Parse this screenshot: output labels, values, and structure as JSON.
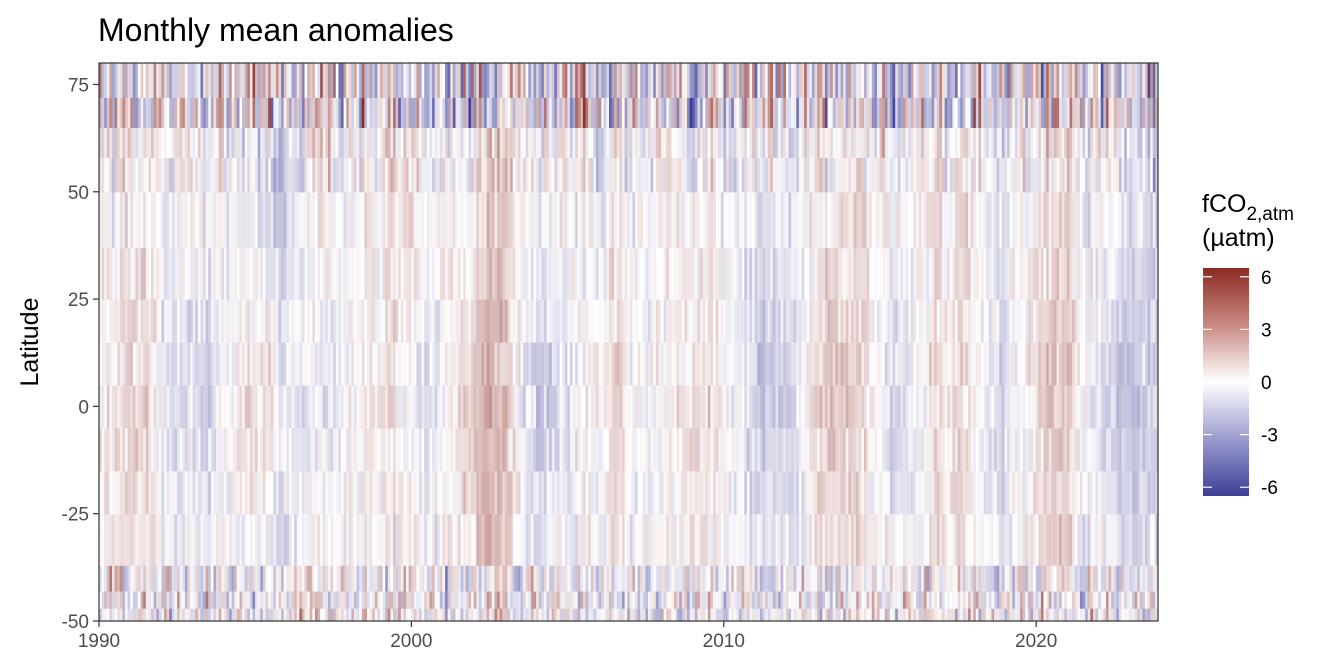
{
  "chart_data": {
    "type": "heatmap",
    "title": "Monthly mean anomalies",
    "xlabel": "",
    "ylabel": "Latitude",
    "x_range": [
      1990,
      2023.9
    ],
    "y_range": [
      -50,
      80
    ],
    "x_ticks": [
      1990,
      2000,
      2010,
      2020
    ],
    "y_ticks": [
      75,
      50,
      25,
      0,
      -25,
      -50
    ],
    "x_tick_labels": [
      "1990",
      "2000",
      "2010",
      "2020"
    ],
    "y_tick_labels": [
      "75",
      "50",
      "25",
      "0",
      "-25",
      "-50"
    ],
    "legend": {
      "title_main": "fCO",
      "title_sub": "2,atm",
      "title_unit": "(µatm)",
      "position": "right",
      "limits": [
        -6.5,
        6.5
      ],
      "breaks": [
        6,
        3,
        0,
        -3,
        -6
      ],
      "break_labels": [
        "6",
        "3",
        "0",
        "-3",
        "-6"
      ]
    },
    "colors": {
      "low": "#3d3d96",
      "mid": "#ffffff",
      "high": "#8b2a22"
    },
    "grid": false,
    "time_resolution": "monthly",
    "color_scale": "diverging"
  }
}
